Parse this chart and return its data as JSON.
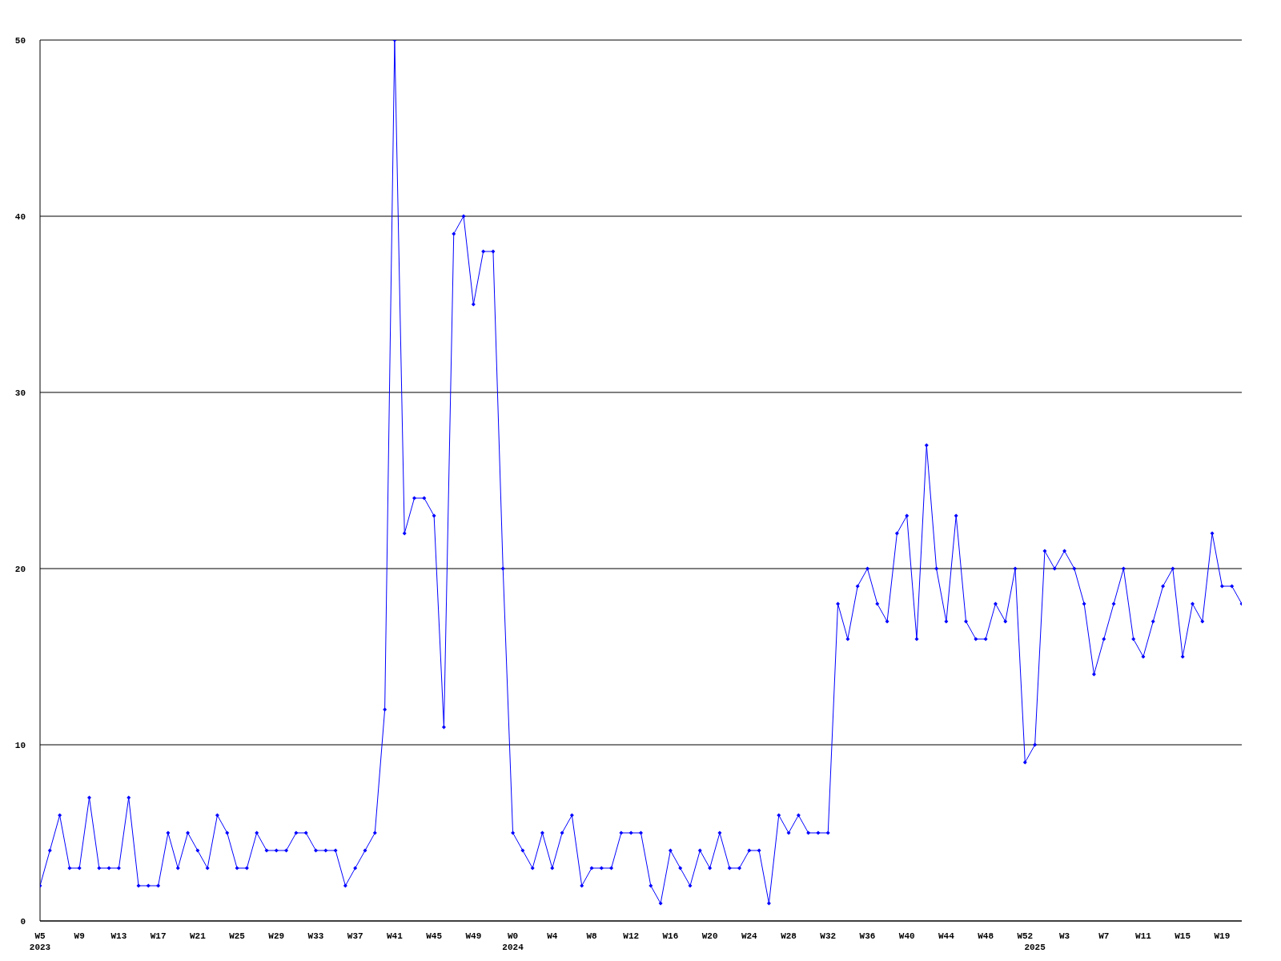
{
  "chart_data": {
    "type": "line",
    "categories": [
      "W5\n2023",
      null,
      null,
      null,
      "W9",
      null,
      null,
      null,
      "W13",
      null,
      null,
      null,
      "W17",
      null,
      null,
      null,
      "W21",
      null,
      null,
      null,
      "W25",
      null,
      null,
      null,
      "W29",
      null,
      null,
      null,
      "W33",
      null,
      null,
      null,
      "W37",
      null,
      null,
      null,
      "W41",
      null,
      null,
      null,
      "W45",
      null,
      null,
      null,
      "W49",
      null,
      null,
      null,
      "W0\n2024",
      null,
      null,
      null,
      "W4",
      null,
      null,
      null,
      "W8",
      null,
      null,
      null,
      "W12",
      null,
      null,
      null,
      "W16",
      null,
      null,
      null,
      "W20",
      null,
      null,
      null,
      "W24",
      null,
      null,
      null,
      "W28",
      null,
      null,
      null,
      "W32",
      null,
      null,
      null,
      "W36",
      null,
      null,
      null,
      "W40",
      null,
      null,
      null,
      "W44",
      null,
      null,
      null,
      "W48",
      null,
      null,
      null,
      "W52",
      "\n2025",
      null,
      null,
      "W3",
      null,
      null,
      null,
      "W7",
      null,
      null,
      null,
      "W11",
      null,
      null,
      null,
      "W15",
      null,
      null,
      null,
      "W19",
      null,
      null
    ],
    "series": [
      {
        "color": "#0000ff",
        "values": [
          2,
          4,
          6,
          3,
          3,
          7,
          3,
          3,
          3,
          7,
          2,
          2,
          2,
          5,
          3,
          5,
          4,
          3,
          6,
          5,
          3,
          3,
          5,
          4,
          4,
          4,
          5,
          5,
          4,
          4,
          4,
          2,
          3,
          4,
          5,
          12,
          50,
          22,
          24,
          24,
          23,
          11,
          39,
          40,
          35,
          38,
          38,
          20,
          5,
          4,
          3,
          5,
          3,
          5,
          6,
          2,
          3,
          3,
          3,
          5,
          5,
          5,
          2,
          1,
          4,
          3,
          2,
          4,
          3,
          5,
          3,
          3,
          4,
          4,
          1,
          6,
          5,
          6,
          5,
          5,
          5,
          18,
          16,
          19,
          20,
          18,
          17,
          22,
          23,
          16,
          27,
          20,
          17,
          23,
          17,
          16,
          16,
          18,
          17,
          20,
          9,
          10,
          21,
          20,
          21,
          20,
          18,
          14,
          16,
          18,
          20,
          16,
          15,
          17,
          19,
          20,
          15,
          18,
          17,
          22,
          19,
          19,
          18
        ]
      }
    ],
    "ylim": [
      0,
      50
    ],
    "yticks": [
      0,
      10,
      20,
      30,
      40,
      50
    ],
    "grid": "y",
    "marker": "diamond",
    "line_style": "solid"
  }
}
